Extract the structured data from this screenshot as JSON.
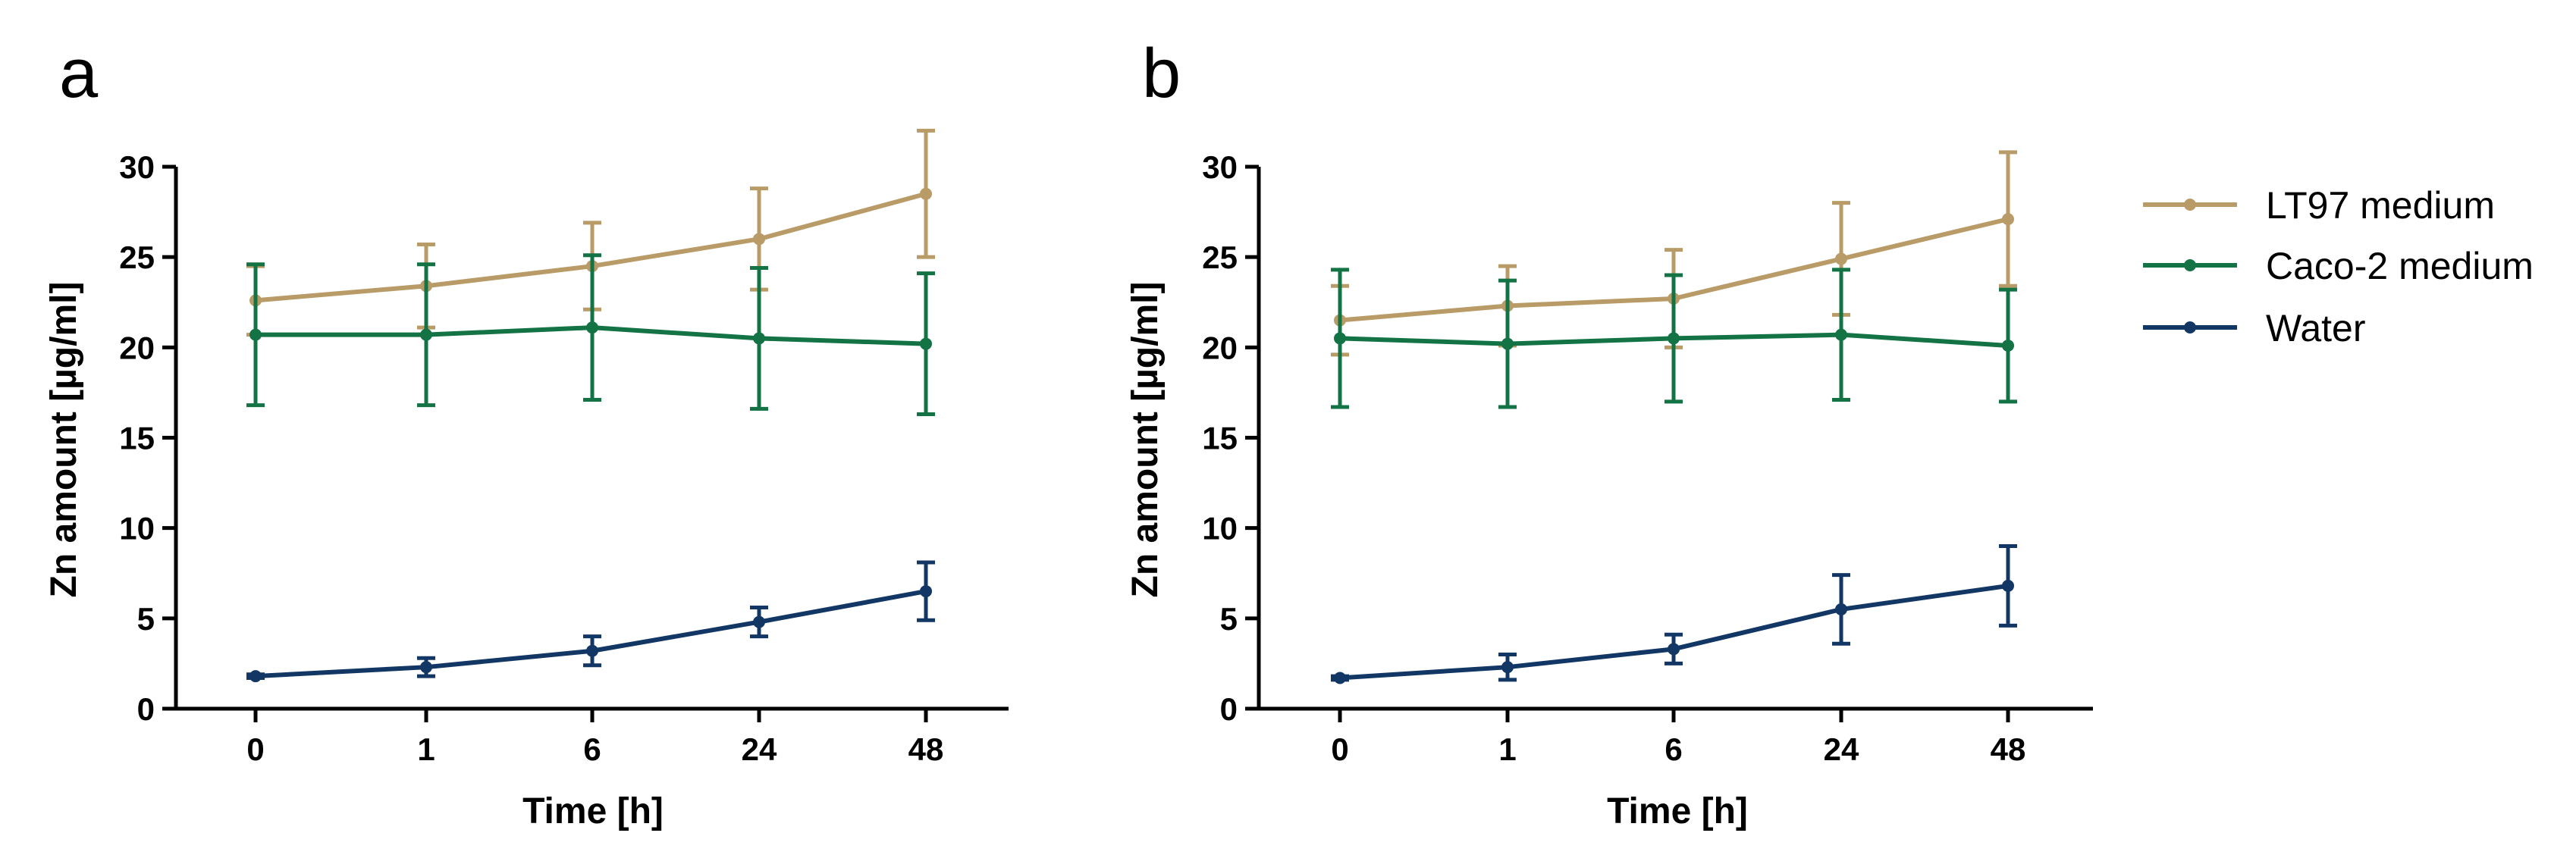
{
  "series_styles": [
    {
      "name": "LT97 medium",
      "color": "#b99b67"
    },
    {
      "name": "Caco-2 medium",
      "color": "#137345"
    },
    {
      "name": "Water",
      "color": "#123765"
    }
  ],
  "chart_data": [
    {
      "type": "line",
      "panel": "a",
      "xlabel": "Time [h]",
      "ylabel": "Zn amount [µg/ml]",
      "categories": [
        "0",
        "1",
        "6",
        "24",
        "48"
      ],
      "ylim": [
        0,
        30
      ],
      "yticks": [
        "0",
        "5",
        "10",
        "15",
        "20",
        "25",
        "30"
      ],
      "series": [
        {
          "name": "LT97 medium",
          "values": [
            22.6,
            23.4,
            24.5,
            26.0,
            28.5
          ],
          "errors": [
            1.9,
            2.3,
            2.4,
            2.8,
            3.5
          ]
        },
        {
          "name": "Caco-2 medium",
          "values": [
            20.7,
            20.7,
            21.1,
            20.5,
            20.2
          ],
          "errors": [
            3.9,
            3.9,
            4.0,
            3.9,
            3.9
          ]
        },
        {
          "name": "Water",
          "values": [
            1.8,
            2.3,
            3.2,
            4.8,
            6.5
          ],
          "errors": [
            0.1,
            0.5,
            0.8,
            0.8,
            1.6
          ]
        }
      ]
    },
    {
      "type": "line",
      "panel": "b",
      "xlabel": "Time [h]",
      "ylabel": "Zn amount [µg/ml]",
      "categories": [
        "0",
        "1",
        "6",
        "24",
        "48"
      ],
      "ylim": [
        0,
        30
      ],
      "yticks": [
        "0",
        "5",
        "10",
        "15",
        "20",
        "25",
        "30"
      ],
      "series": [
        {
          "name": "LT97 medium",
          "values": [
            21.5,
            22.3,
            22.7,
            24.9,
            27.1
          ],
          "errors": [
            1.9,
            2.2,
            2.7,
            3.1,
            3.7
          ]
        },
        {
          "name": "Caco-2 medium",
          "values": [
            20.5,
            20.2,
            20.5,
            20.7,
            20.1
          ],
          "errors": [
            3.8,
            3.5,
            3.5,
            3.6,
            3.1
          ]
        },
        {
          "name": "Water",
          "values": [
            1.7,
            2.3,
            3.3,
            5.5,
            6.8
          ],
          "errors": [
            0.1,
            0.7,
            0.8,
            1.9,
            2.2
          ]
        }
      ]
    }
  ],
  "legend": {
    "items": [
      "LT97 medium",
      "Caco-2 medium",
      "Water"
    ]
  }
}
